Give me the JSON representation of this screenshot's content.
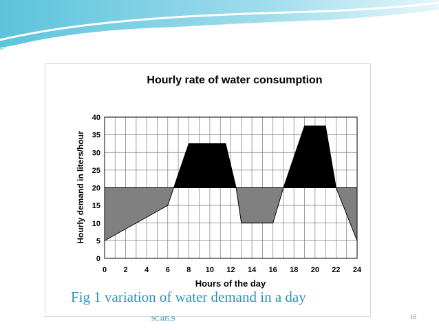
{
  "chart_data": {
    "type": "area",
    "title": "Hourly rate of water consumption",
    "xlabel": "Hours of the day",
    "ylabel": "Hourly demand in liters/hour",
    "xlim": [
      0,
      24
    ],
    "ylim": [
      0,
      40
    ],
    "x_ticks": [
      0,
      2,
      4,
      6,
      8,
      10,
      12,
      14,
      16,
      18,
      20,
      22,
      24
    ],
    "y_ticks": [
      0,
      5,
      10,
      15,
      20,
      25,
      30,
      35,
      40
    ],
    "grid": true,
    "average_line": 20,
    "demand_curve": {
      "x": [
        0,
        6,
        8,
        11.5,
        12.5,
        13,
        16,
        17,
        19,
        21,
        22,
        24
      ],
      "y": [
        5,
        15,
        32.5,
        32.5,
        20,
        10,
        10,
        20,
        37.5,
        37.5,
        20,
        5
      ]
    },
    "colors": {
      "above_average": "#000000",
      "below_average": "#808080",
      "grid": "#888888"
    }
  },
  "caption": "Fig 1 variation of water demand in a day",
  "slide_code": "9C405.9",
  "page_number": "16"
}
